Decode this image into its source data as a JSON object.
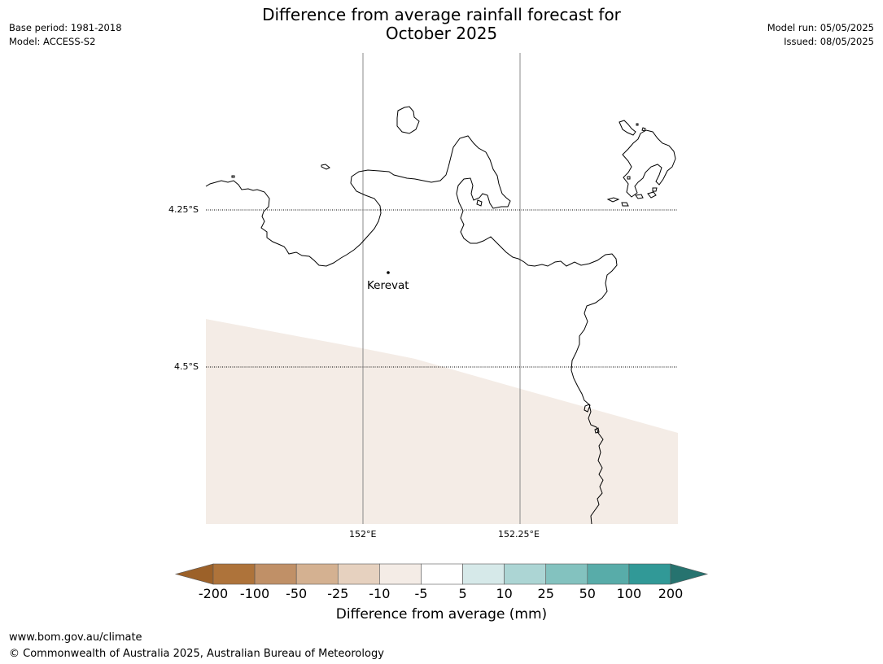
{
  "header": {
    "title_line1": "Difference from average rainfall forecast for",
    "title_line2": "October 2025",
    "base_period": "Base period: 1981-2018",
    "model": "Model: ACCESS-S2",
    "model_run": "Model run: 05/05/2025",
    "issued": "Issued: 08/05/2025"
  },
  "map": {
    "lat_labels": [
      "4.25°S",
      "4.5°S"
    ],
    "lon_labels": [
      "152°E",
      "152.25°E"
    ],
    "place": "Kerevat",
    "forecast_band": "-10 to -5",
    "forecast_color": "#f4ece6"
  },
  "colorbar": {
    "label": "Difference from average (mm)",
    "ticks": [
      "-200",
      "-100",
      "-50",
      "-25",
      "-10",
      "-5",
      "5",
      "10",
      "25",
      "50",
      "100",
      "200"
    ],
    "colors": [
      "#9c6129",
      "#ae733a",
      "#c09067",
      "#d4b191",
      "#e6d1bf",
      "#f4ece6",
      "#ffffff",
      "#d6e9e9",
      "#acd5d4",
      "#83c2bf",
      "#58aca9",
      "#319997",
      "#26736f"
    ]
  },
  "footer": {
    "url": "www.bom.gov.au/climate",
    "copyright": "© Commonwealth of Australia 2025, Australian Bureau of Meteorology"
  }
}
